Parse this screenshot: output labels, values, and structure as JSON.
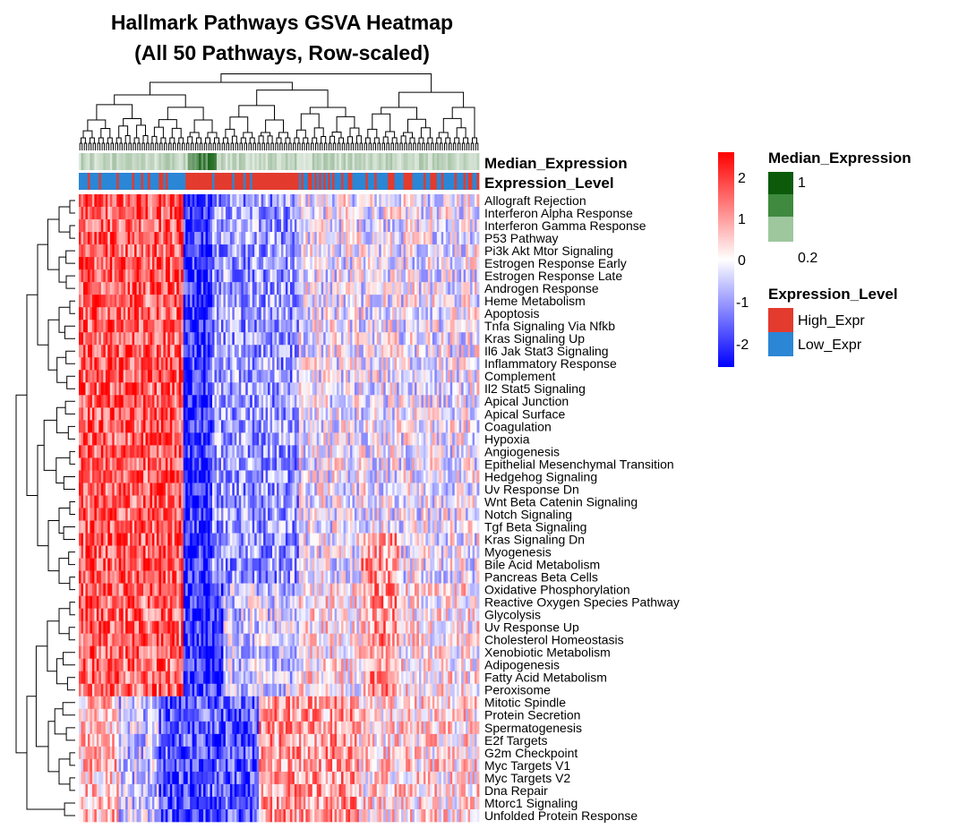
{
  "chart_data": {
    "type": "heatmap",
    "title_lines": [
      "Hallmark Pathways GSVA Heatmap",
      "(All 50 Pathways, Row-scaled)"
    ],
    "rows": [
      "Allograft Rejection",
      "Interferon Alpha Response",
      "Interferon Gamma Response",
      "P53 Pathway",
      "Pi3k Akt Mtor Signaling",
      "Estrogen Response Early",
      "Estrogen Response Late",
      "Androgen Response",
      "Heme Metabolism",
      "Apoptosis",
      "Tnfa Signaling Via Nfkb",
      "Kras Signaling Up",
      "Il6 Jak Stat3 Signaling",
      "Inflammatory Response",
      "Complement",
      "Il2 Stat5 Signaling",
      "Apical Junction",
      "Apical Surface",
      "Coagulation",
      "Hypoxia",
      "Angiogenesis",
      "Epithelial Mesenchymal Transition",
      "Hedgehog Signaling",
      "Uv Response Dn",
      "Wnt Beta Catenin Signaling",
      "Notch Signaling",
      "Tgf Beta Signaling",
      "Kras Signaling Dn",
      "Myogenesis",
      "Bile Acid Metabolism",
      "Pancreas Beta Cells",
      "Oxidative Phosphorylation",
      "Reactive Oxygen Species Pathway",
      "Glycolysis",
      "Uv Response Up",
      "Cholesterol Homeostasis",
      "Xenobiotic Metabolism",
      "Adipogenesis",
      "Fatty Acid Metabolism",
      "Peroxisome",
      "Mitotic Spindle",
      "Protein Secretion",
      "Spermatogenesis",
      "E2f Targets",
      "G2m Checkpoint",
      "Myc Targets V1",
      "Myc Targets V2",
      "Dna Repair",
      "Mtorc1 Signaling",
      "Unfolded Protein Response"
    ],
    "annotation_rows": [
      "Median_Expression",
      "Expression_Level"
    ],
    "color_scale": {
      "ticks": [
        "2",
        "1",
        "0",
        "-1",
        "-2"
      ],
      "range": [
        -2.4,
        2.4
      ],
      "low": "#0000ff",
      "mid": "#ffffff",
      "high": "#ff0000"
    },
    "legends": [
      {
        "title": "Median_Expression",
        "labels": [
          "1",
          "0.2"
        ],
        "colors": [
          "#0b5b0b",
          "#3f8a3f",
          "#9ec79e"
        ]
      },
      {
        "title": "Expression_Level",
        "labels": [
          "High_Expr",
          "Low_Expr"
        ],
        "colors": [
          "#e33b2e",
          "#2b86d6"
        ]
      }
    ]
  }
}
